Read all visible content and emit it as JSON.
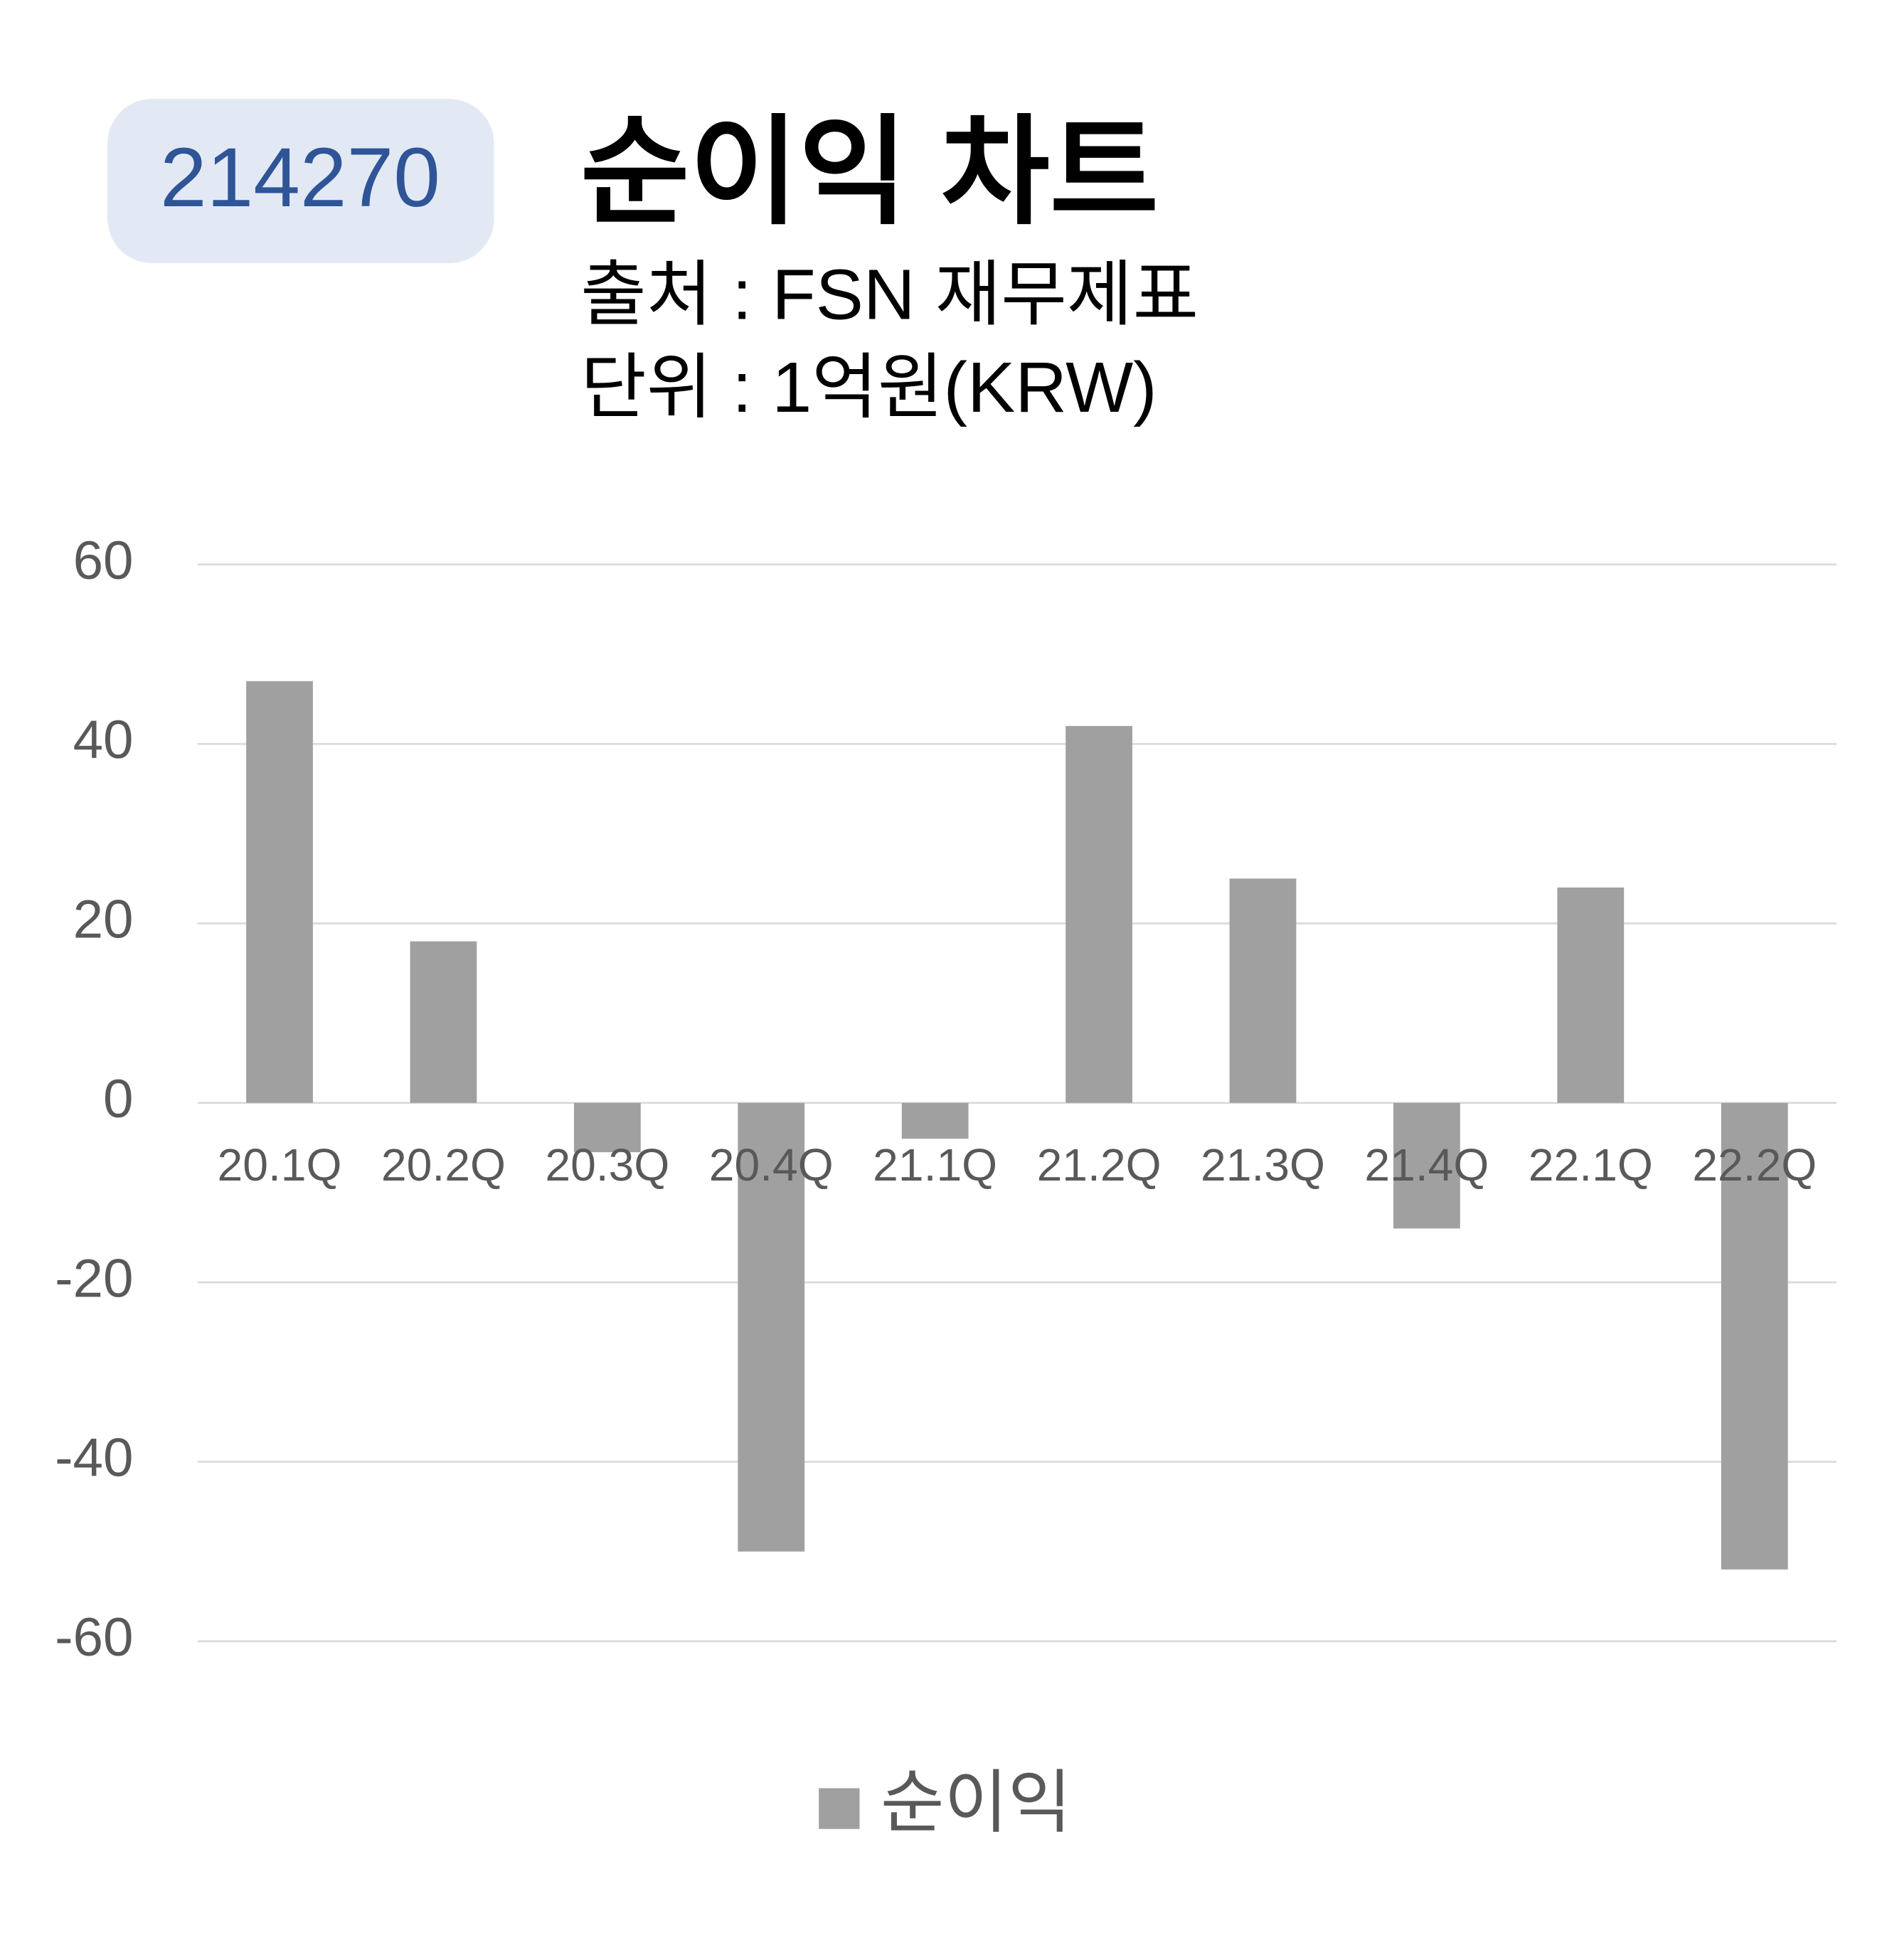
{
  "badge": "214270",
  "chart_data": {
    "type": "bar",
    "title": "순이익 차트",
    "subtitle": [
      "출처 : FSN 재무제표",
      "단위 : 1억원(KRW)"
    ],
    "categories": [
      "20.1Q",
      "20.2Q",
      "20.3Q",
      "20.4Q",
      "21.1Q",
      "21.2Q",
      "21.3Q",
      "21.4Q",
      "22.1Q",
      "22.2Q"
    ],
    "series": [
      {
        "name": "순이익",
        "color": "#a0a0a0",
        "values": [
          47,
          18,
          -5.5,
          -50,
          -4,
          42,
          25,
          -14,
          24,
          -52
        ]
      }
    ],
    "ylim": [
      -60,
      60
    ],
    "yticks": [
      -60,
      -40,
      -20,
      0,
      20,
      40,
      60
    ],
    "grid": true,
    "legend": "bottom"
  }
}
